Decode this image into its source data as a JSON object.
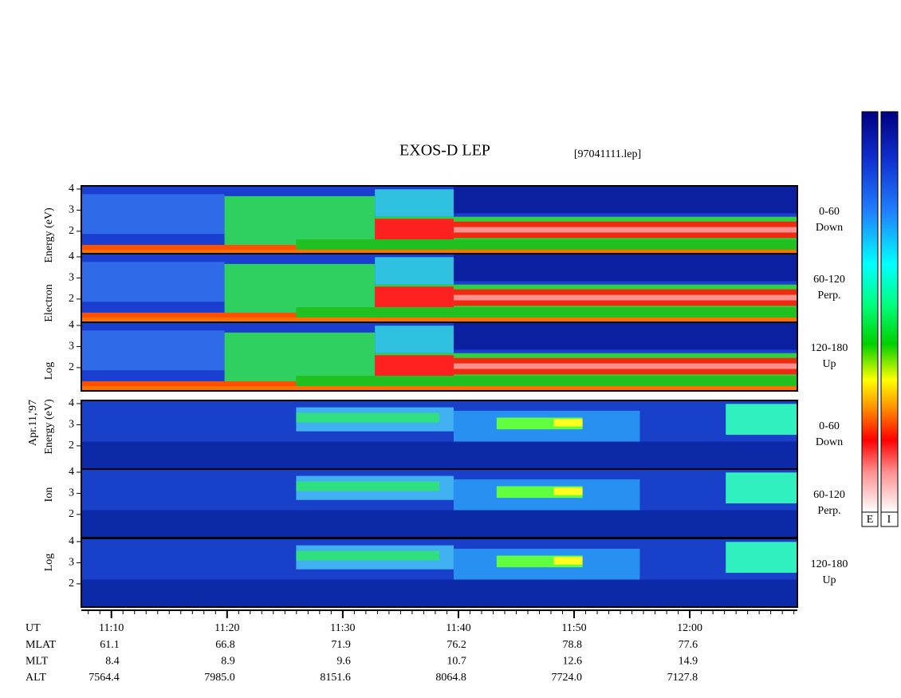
{
  "chart_data": {
    "type": "spectrogram",
    "title": "EXOS-D LEP",
    "file": "[97041111.lep]",
    "date": "Apr.11,'97",
    "electron_label": [
      "Log",
      "Electron",
      "Energy (eV)"
    ],
    "ion_label": [
      "Log",
      "Ion",
      "Energy (eV)"
    ],
    "panels": [
      {
        "species": "electron",
        "label": [
          "0-60",
          "Down"
        ]
      },
      {
        "species": "electron",
        "label": [
          "60-120",
          "Perp."
        ]
      },
      {
        "species": "electron",
        "label": [
          "120-180",
          "Up"
        ]
      },
      {
        "species": "ion",
        "label": [
          "0-60",
          "Down"
        ]
      },
      {
        "species": "ion",
        "label": [
          "60-120",
          "Perp."
        ]
      },
      {
        "species": "ion",
        "label": [
          "120-180",
          "Up"
        ]
      }
    ],
    "ylim": [
      0.9,
      4.15
    ],
    "yticks": [
      2,
      3,
      4
    ],
    "xlim": [
      667.4,
      729.3
    ],
    "xticks": [
      {
        "value": 670,
        "label": "11:10"
      },
      {
        "value": 680,
        "label": "11:20"
      },
      {
        "value": 690,
        "label": "11:30"
      },
      {
        "value": 700,
        "label": "11:40"
      },
      {
        "value": 710,
        "label": "11:50"
      },
      {
        "value": 720,
        "label": "12:00"
      }
    ],
    "x_row_label": "UT",
    "ephemeris": [
      {
        "name": "MLAT",
        "values": [
          "61.1",
          "66.8",
          "71.9",
          "76.2",
          "78.8",
          "77.6"
        ]
      },
      {
        "name": "MLT",
        "values": [
          "8.4",
          "8.9",
          "9.6",
          "10.7",
          "12.6",
          "14.9"
        ]
      },
      {
        "name": "ALT",
        "values": [
          "7564.4",
          "7985.0",
          "8151.6",
          "8064.8",
          "7724.0",
          "7127.8"
        ]
      }
    ],
    "colorbar_labels": [
      "E",
      "I"
    ]
  }
}
